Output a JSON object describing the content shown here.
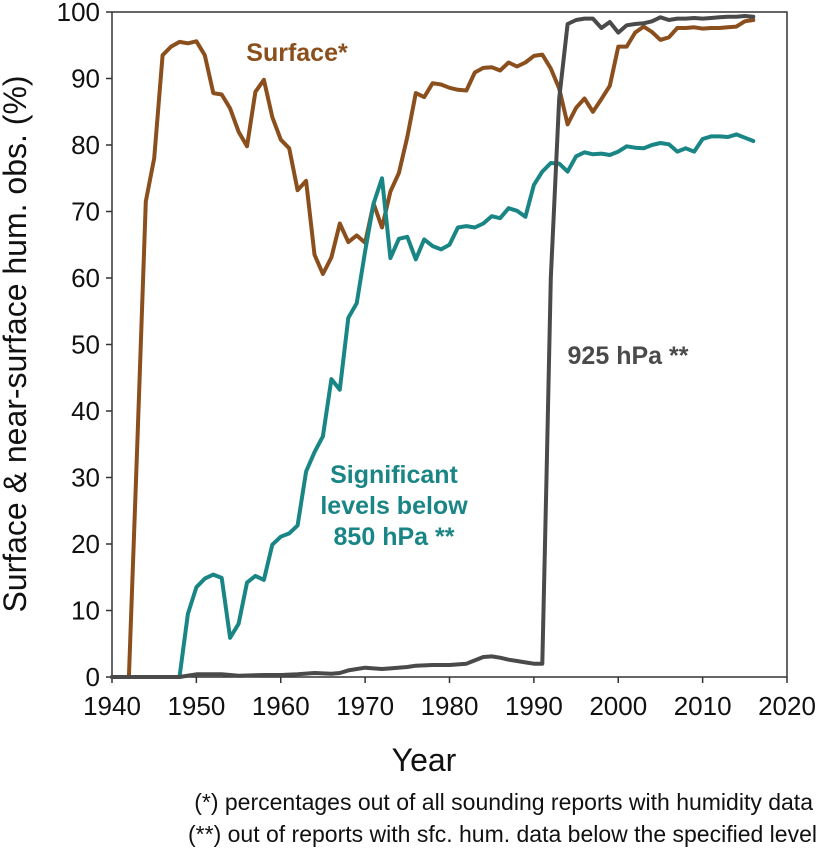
{
  "chart_data": {
    "type": "line",
    "xlabel": "Year",
    "ylabel": "Surface & near-surface hum. obs. (%)",
    "xlim": [
      1940,
      2020
    ],
    "ylim": [
      0,
      100
    ],
    "xticks": [
      1940,
      1950,
      1960,
      1970,
      1980,
      1990,
      2000,
      2010,
      2020
    ],
    "yticks": [
      0,
      10,
      20,
      30,
      40,
      50,
      60,
      70,
      80,
      90,
      100
    ],
    "grid": false,
    "series": [
      {
        "name": "Surface*",
        "color": "#8a4f1c",
        "x": [
          1940,
          1941,
          1942,
          1943,
          1944,
          1945,
          1946,
          1947,
          1948,
          1949,
          1950,
          1951,
          1952,
          1953,
          1954,
          1955,
          1956,
          1957,
          1958,
          1959,
          1960,
          1961,
          1962,
          1963,
          1964,
          1965,
          1966,
          1967,
          1968,
          1969,
          1970,
          1971,
          1972,
          1973,
          1974,
          1975,
          1976,
          1977,
          1978,
          1979,
          1980,
          1981,
          1982,
          1983,
          1984,
          1985,
          1986,
          1987,
          1988,
          1989,
          1990,
          1991,
          1992,
          1993,
          1994,
          1995,
          1996,
          1997,
          1998,
          1999,
          2000,
          2001,
          2002,
          2003,
          2004,
          2005,
          2006,
          2007,
          2008,
          2009,
          2010,
          2011,
          2012,
          2013,
          2014,
          2015,
          2016
        ],
        "values": [
          0,
          0,
          0,
          35,
          71.5,
          78,
          93.5,
          94.8,
          95.5,
          95.3,
          95.6,
          93.5,
          87.8,
          87.6,
          85.5,
          82,
          79.8,
          88,
          89.8,
          84.2,
          80.8,
          79.5,
          73.2,
          74.6,
          63.5,
          60.6,
          63.1,
          68.2,
          65.4,
          66.4,
          65.3,
          71.2,
          67.6,
          73,
          75.8,
          81.2,
          87.8,
          87.2,
          89.3,
          89.1,
          88.6,
          88.3,
          88.2,
          90.9,
          91.6,
          91.7,
          91.2,
          92.4,
          91.8,
          92.4,
          93.4,
          93.6,
          91.5,
          88.5,
          83.1,
          85.6,
          87,
          85,
          86.9,
          88.9,
          94.8,
          94.8,
          96.9,
          97.8,
          97,
          95.8,
          96.2,
          97.6,
          97.6,
          97.7,
          97.5,
          97.6,
          97.6,
          97.7,
          97.8,
          98.6,
          98.8
        ]
      },
      {
        "name": "Significant levels below 850 hPa **",
        "color": "#1a8585",
        "x": [
          1948,
          1949,
          1950,
          1951,
          1952,
          1953,
          1954,
          1955,
          1956,
          1957,
          1958,
          1959,
          1960,
          1961,
          1962,
          1963,
          1964,
          1965,
          1966,
          1967,
          1968,
          1969,
          1970,
          1971,
          1972,
          1973,
          1974,
          1975,
          1976,
          1977,
          1978,
          1979,
          1980,
          1981,
          1982,
          1983,
          1984,
          1985,
          1986,
          1987,
          1988,
          1989,
          1990,
          1991,
          1992,
          1993,
          1994,
          1995,
          1996,
          1997,
          1998,
          1999,
          2000,
          2001,
          2002,
          2003,
          2004,
          2005,
          2006,
          2007,
          2008,
          2009,
          2010,
          2011,
          2012,
          2013,
          2014,
          2015,
          2016
        ],
        "values": [
          0,
          9.5,
          13.5,
          14.8,
          15.4,
          14.9,
          5.9,
          8,
          14.2,
          15.2,
          14.6,
          19.9,
          21.1,
          21.6,
          22.8,
          30.9,
          33.8,
          36.2,
          44.8,
          43.2,
          54,
          56.2,
          64,
          71.2,
          75,
          63,
          65.9,
          66.2,
          62.8,
          65.8,
          64.8,
          64.3,
          65,
          67.6,
          67.8,
          67.6,
          68.2,
          69.3,
          69,
          70.5,
          70.1,
          69.2,
          74,
          76,
          77.3,
          77.2,
          76,
          78.3,
          78.9,
          78.6,
          78.7,
          78.5,
          79,
          79.8,
          79.6,
          79.5,
          80,
          80.3,
          80.1,
          79,
          79.5,
          79,
          80.9,
          81.3,
          81.3,
          81.2,
          81.6,
          81.1,
          80.6
        ]
      },
      {
        "name": "925 hPa **",
        "color": "#4a4a4a",
        "x": [
          1940,
          1945,
          1948,
          1950,
          1953,
          1955,
          1958,
          1960,
          1962,
          1964,
          1966,
          1967,
          1968,
          1970,
          1972,
          1973,
          1975,
          1976,
          1978,
          1980,
          1982,
          1983,
          1984,
          1985,
          1986,
          1987,
          1988,
          1989,
          1990,
          1991,
          1991.5,
          1992,
          1993,
          1994,
          1995,
          1996,
          1997,
          1998,
          1999,
          2000,
          2001,
          2002,
          2003,
          2004,
          2005,
          2006,
          2007,
          2008,
          2009,
          2010,
          2011,
          2012,
          2013,
          2014,
          2015,
          2016
        ],
        "values": [
          0,
          0,
          0,
          0.4,
          0.4,
          0.2,
          0.3,
          0.3,
          0.4,
          0.6,
          0.5,
          0.6,
          1,
          1.4,
          1.2,
          1.3,
          1.5,
          1.7,
          1.8,
          1.8,
          2,
          2.5,
          3,
          3.1,
          2.9,
          2.6,
          2.4,
          2.2,
          2,
          2,
          30,
          60,
          87,
          98.2,
          98.8,
          99,
          99,
          97.6,
          98.5,
          96.9,
          98,
          98.2,
          98.3,
          98.6,
          99.2,
          98.8,
          99,
          99,
          99.1,
          99,
          99.1,
          99.2,
          99.3,
          99.3,
          99.4,
          99.3
        ]
      }
    ],
    "annotations": [
      {
        "text": "Surface*",
        "color": "#8a4f1c"
      },
      {
        "lines": [
          "Significant",
          "levels below",
          "850 hPa **"
        ],
        "color": "#1a8585"
      },
      {
        "text": "925 hPa **",
        "color": "#4a4a4a"
      }
    ]
  },
  "footnotes": [
    "(*) percentages out of all sounding reports with humidity data",
    "(**) out of reports with sfc. hum. data below the specified level"
  ]
}
